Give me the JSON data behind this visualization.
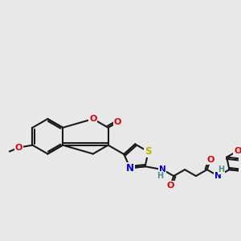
{
  "background_color": "#e8e8e8",
  "bond_color": "#1a1a1a",
  "atom_colors": {
    "S": "#b8b800",
    "N": "#0000cc",
    "O": "#dd0000",
    "H_color": "#4a9090"
  },
  "figsize": [
    3.0,
    3.0
  ],
  "dpi": 100
}
